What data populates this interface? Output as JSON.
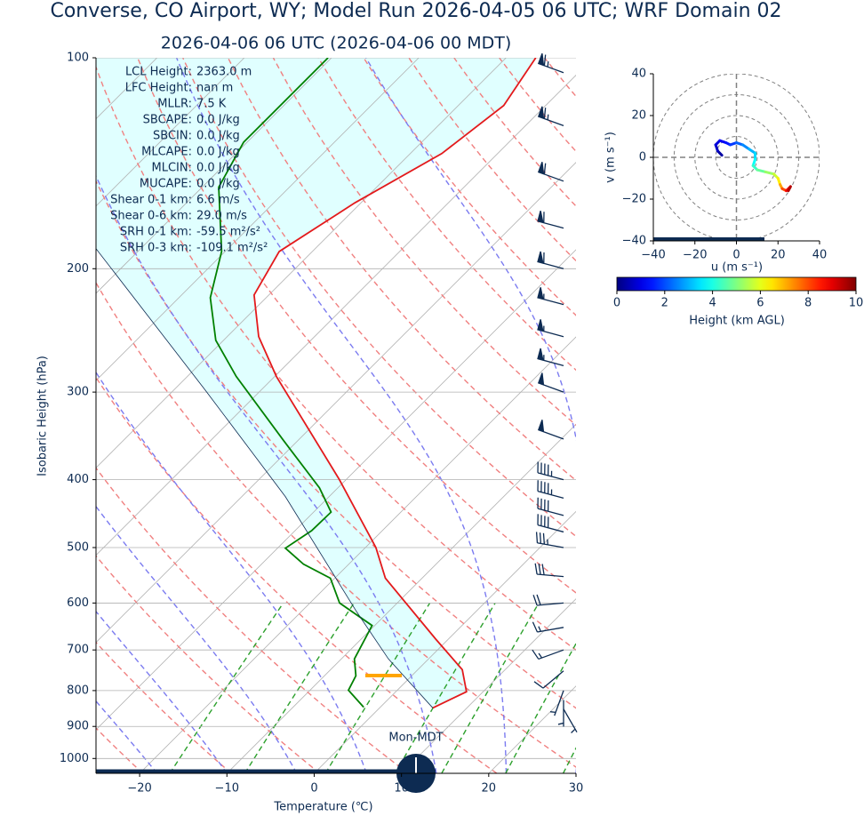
{
  "chart_data": [
    {
      "type": "skewt",
      "title": "Converse, CO Airport, WY; Model Run 2026-04-05 06 UTC; WRF Domain 02",
      "subtitle": "2026-04-06 06 UTC  (2026-04-06 00 MDT)",
      "xlabel": "Temperature (℃)",
      "ylabel": "Isobaric Height (hPa)",
      "annotation": "Mon-MDT",
      "xlim": [
        -25,
        30
      ],
      "xticks": [
        {
          "value": -20,
          "label": "−20"
        },
        {
          "value": -10,
          "label": "−10"
        },
        0,
        10,
        20,
        30
      ],
      "ylim": [
        1050,
        100
      ],
      "yticks": [
        100,
        200,
        300,
        400,
        500,
        600,
        700,
        800,
        900,
        1000
      ],
      "log_y": true,
      "grid": true,
      "series": [
        {
          "color": "#e31a1c",
          "pressure": [
            847,
            803,
            747,
            675,
            553,
            500,
            399,
            285,
            250,
            218,
            189,
            161,
            137,
            117,
            100
          ],
          "values": [
            6.1,
            8.1,
            5.1,
            -1.5,
            -14.2,
            -18.8,
            -30.9,
            -49.8,
            -56.4,
            -61.7,
            -63.8,
            -60.7,
            -56.4,
            -54.8,
            -56.6
          ]
        },
        {
          "color": "#008000",
          "pressure": [
            845,
            799,
            762,
            721,
            646,
            600,
            553,
            528,
            501,
            473,
            445,
            411,
            352,
            285,
            253,
            220,
            189,
            153,
            132,
            100
          ],
          "values": [
            -1.9,
            -5.6,
            -6.4,
            -8.5,
            -10.3,
            -16.6,
            -20.5,
            -25.2,
            -29.1,
            -28.1,
            -28.0,
            -32.1,
            -41.6,
            -54.4,
            -60.9,
            -66.4,
            -70.4,
            -78.1,
            -80.4,
            -80.4
          ]
        },
        {
          "color": "#0d2b52",
          "pressure": [
            847,
            721,
            618,
            423,
            298,
            187
          ],
          "values": [
            6.1,
            -4.6,
            -13.6,
            -35.0,
            -56.4,
            -85.2
          ]
        }
      ],
      "stats": [
        {
          "label": "LCL Height:",
          "value": "2363.0 m"
        },
        {
          "label": "LFC Height:",
          "value": "nan m"
        },
        {
          "label": "MLLR:",
          "value": "7.5 K"
        },
        {
          "label": "SBCAPE:",
          "value": "0.0 J/kg"
        },
        {
          "label": "SBCIN:",
          "value": "0.0 J/kg"
        },
        {
          "label": "MLCAPE:",
          "value": "0.0 J/kg"
        },
        {
          "label": "MLCIN:",
          "value": "0.0 J/kg"
        },
        {
          "label": "MUCAPE:",
          "value": "0.0 J/kg"
        },
        {
          "label": "Shear 0-1 km:",
          "value": "6.6 m/s"
        },
        {
          "label": "Shear 0-6 km:",
          "value": "29.0 m/s"
        },
        {
          "label": "SRH 0-1 km:",
          "value": "-59.5 m²/s²"
        },
        {
          "label": "SRH 0-3 km:",
          "value": "-109.1 m²/s²"
        }
      ],
      "winds": {
        "pressure": [
          105,
          125,
          150,
          175,
          200,
          225,
          250,
          275,
          300,
          350,
          400,
          425,
          450,
          475,
          500,
          550,
          600,
          650,
          700,
          750,
          800,
          825,
          850
        ],
        "speed": [
          65,
          65,
          60,
          60,
          60,
          55,
          55,
          55,
          50,
          50,
          45,
          45,
          40,
          40,
          35,
          30,
          20,
          15,
          15,
          10,
          5,
          5,
          5
        ],
        "direction": [
          290,
          290,
          290,
          285,
          285,
          285,
          285,
          285,
          290,
          290,
          285,
          285,
          285,
          285,
          280,
          275,
          265,
          260,
          250,
          230,
          200,
          180,
          150
        ],
        "color": "#0d2b52"
      }
    },
    {
      "type": "hodograph",
      "xlabel": "u (m s⁻¹)",
      "ylabel": "v (m s⁻¹)",
      "xlim": [
        -40,
        40
      ],
      "ylim": [
        -40,
        40
      ],
      "xticks": [
        {
          "value": -40,
          "label": "−40"
        },
        {
          "value": -20,
          "label": "−20"
        },
        0,
        20,
        40
      ],
      "yticks": [
        {
          "value": -40,
          "label": "−40"
        },
        {
          "value": -20,
          "label": "−20"
        },
        0,
        20,
        40
      ],
      "rings": [
        10,
        20,
        30,
        40
      ],
      "u": [
        -7,
        -9,
        -10,
        -8,
        -5,
        -3,
        0,
        3,
        6,
        9,
        9,
        8,
        10,
        14,
        18,
        20,
        21,
        22,
        24,
        26,
        25
      ],
      "v": [
        1,
        3,
        6,
        8,
        7,
        6,
        7,
        6,
        4,
        2,
        -1,
        -4,
        -6,
        -7,
        -8,
        -10,
        -13,
        -15,
        -16,
        -14,
        -16
      ],
      "heights": [
        0.2,
        0.5,
        0.8,
        1.0,
        1.3,
        1.6,
        2.0,
        2.4,
        2.8,
        3.2,
        3.6,
        4.0,
        4.5,
        5.0,
        5.5,
        6.0,
        6.8,
        7.5,
        8.5,
        9.2,
        9.8
      ],
      "colormap": "jet",
      "colorbar": {
        "label": "Height (km AGL)",
        "lim": [
          0,
          10
        ],
        "ticks": [
          0,
          2,
          4,
          6,
          8,
          10
        ]
      }
    }
  ]
}
